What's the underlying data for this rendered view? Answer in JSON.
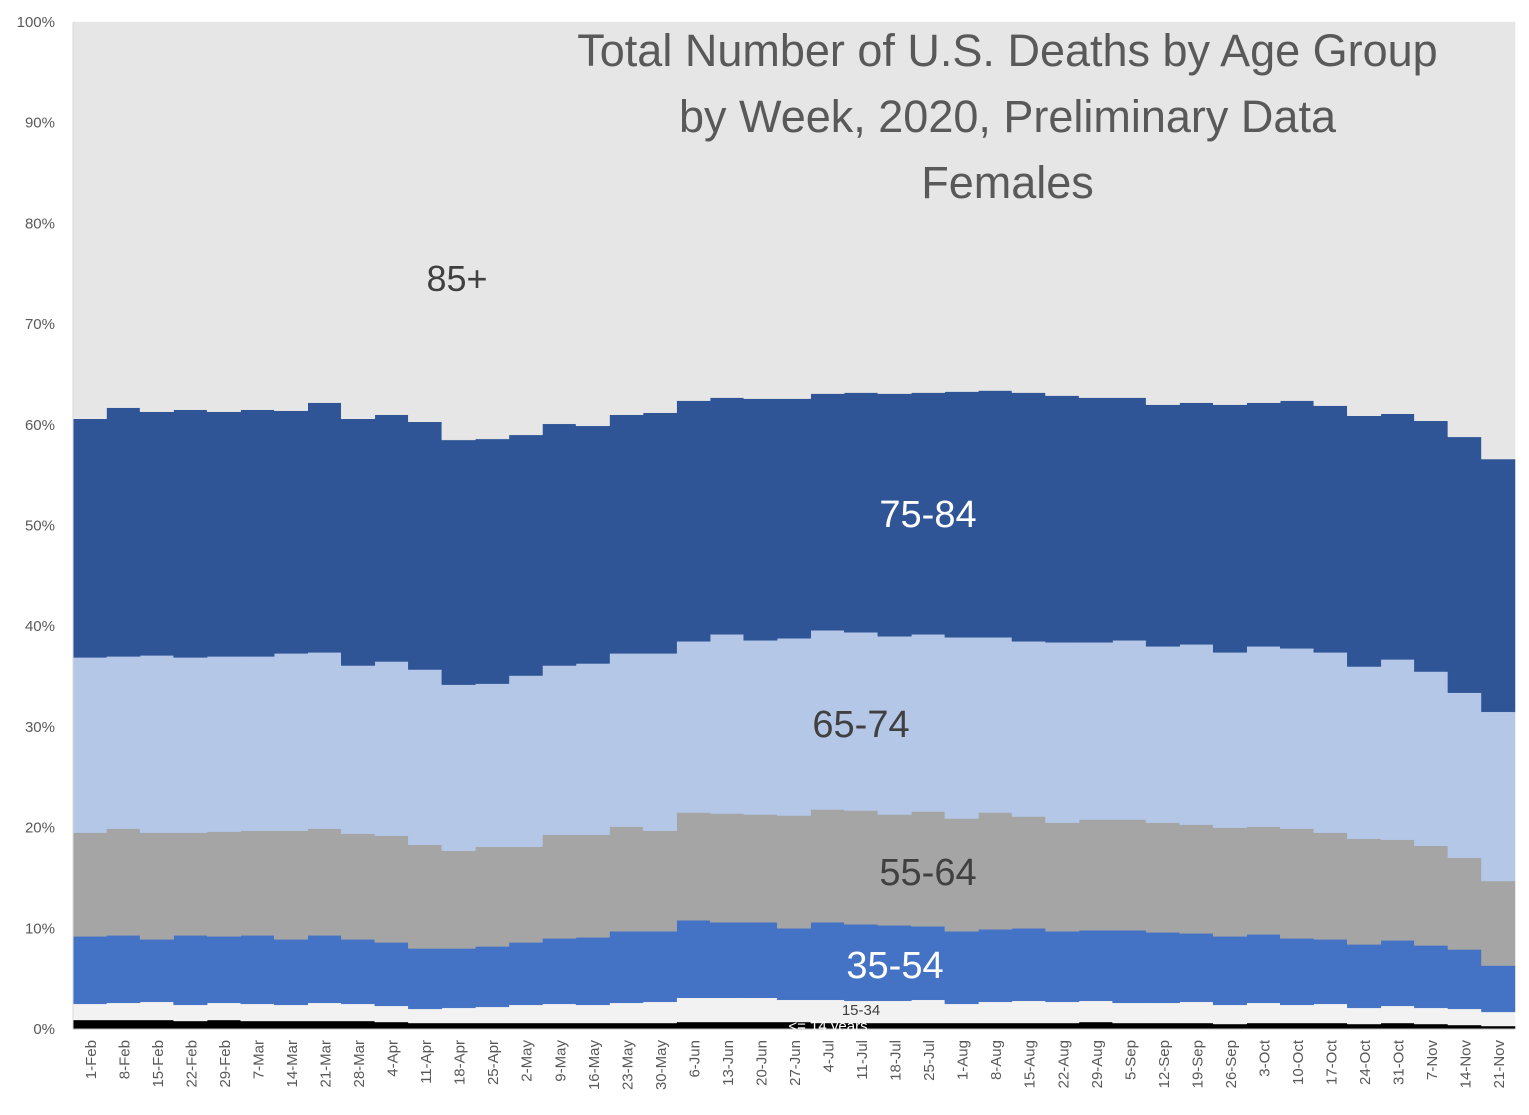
{
  "chart_data": {
    "type": "area",
    "stacked": true,
    "normalized": true,
    "title": [
      "Total Number of U.S. Deaths by Age Group",
      "by Week, 2020, Preliminary Data",
      "Females"
    ],
    "categories": [
      "1-Feb",
      "8-Feb",
      "15-Feb",
      "22-Feb",
      "29-Feb",
      "7-Mar",
      "14-Mar",
      "21-Mar",
      "28-Mar",
      "4-Apr",
      "11-Apr",
      "18-Apr",
      "25-Apr",
      "2-May",
      "9-May",
      "16-May",
      "23-May",
      "30-May",
      "6-Jun",
      "13-Jun",
      "20-Jun",
      "27-Jun",
      "4-Jul",
      "11-Jul",
      "18-Jul",
      "25-Jul",
      "1-Aug",
      "8-Aug",
      "15-Aug",
      "22-Aug",
      "29-Aug",
      "5-Sep",
      "12-Sep",
      "19-Sep",
      "26-Sep",
      "3-Oct",
      "10-Oct",
      "17-Oct",
      "24-Oct",
      "31-Oct",
      "7-Nov",
      "14-Nov",
      "21-Nov"
    ],
    "ylim": [
      0,
      100
    ],
    "y_ticks": [
      "0%",
      "10%",
      "20%",
      "30%",
      "40%",
      "50%",
      "60%",
      "70%",
      "80%",
      "90%",
      "100%"
    ],
    "series": [
      {
        "name": "<= 14 years",
        "color": "#000000",
        "label_color": "#ffffff",
        "values": [
          0.9,
          0.9,
          0.9,
          0.8,
          0.9,
          0.8,
          0.8,
          0.8,
          0.8,
          0.7,
          0.6,
          0.6,
          0.6,
          0.6,
          0.6,
          0.6,
          0.6,
          0.6,
          0.7,
          0.7,
          0.7,
          0.7,
          0.6,
          0.6,
          0.6,
          0.6,
          0.6,
          0.6,
          0.6,
          0.6,
          0.7,
          0.6,
          0.6,
          0.6,
          0.5,
          0.6,
          0.6,
          0.6,
          0.5,
          0.6,
          0.5,
          0.4,
          0.3
        ]
      },
      {
        "name": "15-34",
        "color": "#f2f2f2",
        "label_color": "#404040",
        "values": [
          1.6,
          1.7,
          1.8,
          1.6,
          1.7,
          1.7,
          1.6,
          1.8,
          1.7,
          1.6,
          1.4,
          1.5,
          1.6,
          1.8,
          1.9,
          1.8,
          2.0,
          2.1,
          2.4,
          2.4,
          2.4,
          2.2,
          2.3,
          2.2,
          2.2,
          2.3,
          1.9,
          2.1,
          2.2,
          2.1,
          2.1,
          2.0,
          2.0,
          2.1,
          1.9,
          2.0,
          1.8,
          1.9,
          1.6,
          1.7,
          1.6,
          1.6,
          1.4
        ]
      },
      {
        "name": "35-54",
        "color": "#4472c4",
        "label_color": "#ffffff",
        "values": [
          6.7,
          6.7,
          6.2,
          6.9,
          6.6,
          6.8,
          6.5,
          6.7,
          6.4,
          6.3,
          6.0,
          5.9,
          6.0,
          6.2,
          6.5,
          6.7,
          7.1,
          7.0,
          7.7,
          7.5,
          7.5,
          7.1,
          7.7,
          7.6,
          7.5,
          7.3,
          7.2,
          7.2,
          7.2,
          7.0,
          7.0,
          7.2,
          7.0,
          6.8,
          6.8,
          6.8,
          6.6,
          6.4,
          6.3,
          6.5,
          6.2,
          5.9,
          4.6
        ]
      },
      {
        "name": "55-64",
        "color": "#a5a5a5",
        "label_color": "#404040",
        "values": [
          10.3,
          10.6,
          10.6,
          10.2,
          10.4,
          10.4,
          10.8,
          10.6,
          10.5,
          10.6,
          10.3,
          9.7,
          9.9,
          9.5,
          10.3,
          10.2,
          10.4,
          10.0,
          10.7,
          10.8,
          10.7,
          11.2,
          11.2,
          11.3,
          11.0,
          11.4,
          11.2,
          11.6,
          11.1,
          10.8,
          11.0,
          11.0,
          10.9,
          10.8,
          10.8,
          10.7,
          10.9,
          10.6,
          10.5,
          10.0,
          9.9,
          9.1,
          8.4
        ]
      },
      {
        "name": "65-74",
        "color": "#b4c7e7",
        "label_color": "#404040",
        "values": [
          17.4,
          17.1,
          17.6,
          17.4,
          17.4,
          17.3,
          17.6,
          17.5,
          16.7,
          17.3,
          17.4,
          16.5,
          16.2,
          17.0,
          16.8,
          17.0,
          17.2,
          17.6,
          17.0,
          17.8,
          17.3,
          17.6,
          17.8,
          17.7,
          17.7,
          17.6,
          18.0,
          17.4,
          17.4,
          17.9,
          17.6,
          17.8,
          17.5,
          17.9,
          17.4,
          17.9,
          17.9,
          17.9,
          17.1,
          17.9,
          17.3,
          16.4,
          16.8
        ]
      },
      {
        "name": "75-84",
        "color": "#2f5597",
        "label_color": "#ffffff",
        "values": [
          23.7,
          24.7,
          24.2,
          24.6,
          24.3,
          24.5,
          24.1,
          24.8,
          24.5,
          24.5,
          24.6,
          24.3,
          24.3,
          23.9,
          24.0,
          23.6,
          23.7,
          23.9,
          23.9,
          23.5,
          24.0,
          23.8,
          23.5,
          23.8,
          24.1,
          24.0,
          24.4,
          24.5,
          24.7,
          24.5,
          24.3,
          24.1,
          24.0,
          24.0,
          24.6,
          24.2,
          24.6,
          24.5,
          24.9,
          24.4,
          24.9,
          25.4,
          25.1
        ]
      },
      {
        "name": "85+",
        "color": "#e7e6e6",
        "label_color": "#404040",
        "values": [
          39.4,
          38.3,
          38.7,
          38.5,
          38.7,
          38.5,
          38.6,
          37.8,
          39.4,
          39.0,
          39.7,
          41.5,
          41.4,
          41.0,
          39.9,
          40.1,
          39.0,
          38.8,
          37.6,
          37.3,
          37.4,
          37.4,
          36.9,
          36.8,
          36.9,
          36.8,
          36.7,
          36.6,
          36.8,
          37.1,
          37.3,
          37.3,
          38.0,
          37.8,
          38.0,
          37.8,
          37.6,
          38.1,
          39.1,
          38.9,
          39.6,
          41.2,
          43.4
        ]
      }
    ]
  }
}
